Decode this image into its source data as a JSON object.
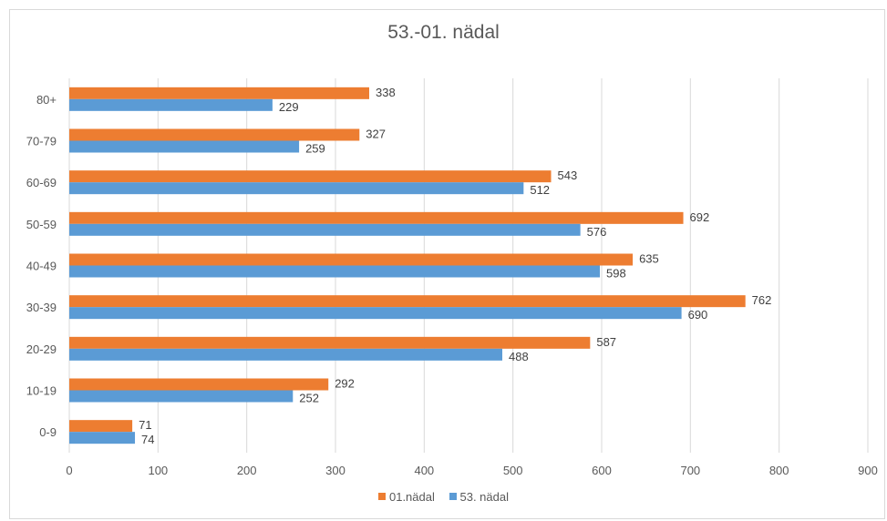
{
  "chart_data": {
    "type": "bar",
    "orientation": "horizontal",
    "title": "53.-01. nädal",
    "categories": [
      "0-9",
      "10-19",
      "20-29",
      "30-39",
      "40-49",
      "50-59",
      "60-69",
      "70-79",
      "80+"
    ],
    "series": [
      {
        "name": "01.nädal",
        "color": "#ED7D31",
        "values": [
          71,
          292,
          587,
          762,
          635,
          692,
          543,
          327,
          338
        ]
      },
      {
        "name": "53. nädal",
        "color": "#5B9BD5",
        "values": [
          74,
          252,
          488,
          690,
          598,
          576,
          512,
          259,
          229
        ]
      }
    ],
    "xlim": [
      0,
      900
    ],
    "x_ticks": [
      0,
      100,
      200,
      300,
      400,
      500,
      600,
      700,
      800,
      900
    ],
    "grid": "vertical",
    "legend_position": "bottom"
  }
}
